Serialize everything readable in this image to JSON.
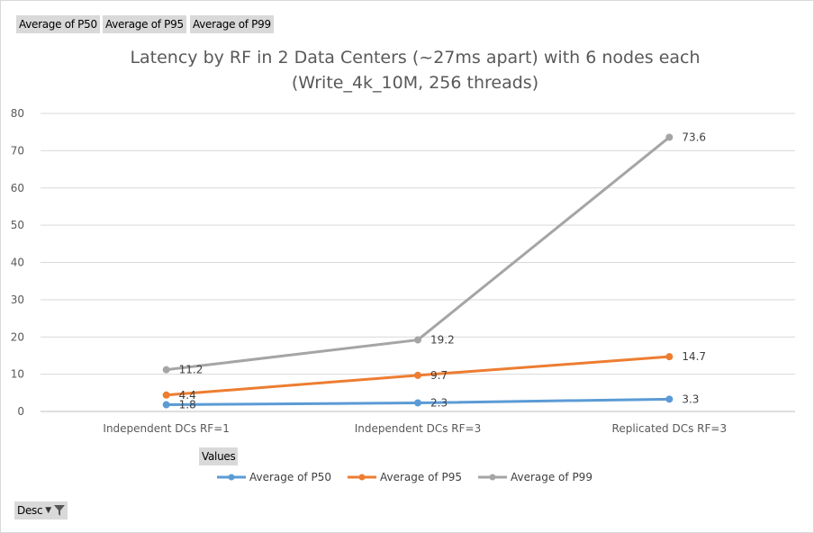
{
  "pivot_fields": {
    "value_buttons": [
      "Average of P50",
      "Average of P95",
      "Average of P99"
    ],
    "values_label": "Values",
    "axis_button_label": "Desc"
  },
  "chart_data": {
    "type": "line",
    "title": "Latency by RF in 2 Data Centers (~27ms apart) with 6 nodes each",
    "subtitle": "(Write_4k_10M, 256 threads)",
    "categories": [
      "Independent DCs RF=1",
      "Independent DCs RF=3",
      "Replicated DCs RF=3"
    ],
    "ylim": [
      0,
      80
    ],
    "yticks": [
      0,
      10,
      20,
      30,
      40,
      50,
      60,
      70,
      80
    ],
    "grid": true,
    "legend_position": "bottom",
    "series": [
      {
        "name": "Average of P50",
        "values": [
          1.8,
          2.3,
          3.3
        ],
        "color": "#5b9bd5"
      },
      {
        "name": "Average of P95",
        "values": [
          4.4,
          9.7,
          14.7
        ],
        "color": "#ed7d31"
      },
      {
        "name": "Average of P99",
        "values": [
          11.2,
          19.2,
          73.6
        ],
        "color": "#a5a5a5"
      }
    ]
  }
}
